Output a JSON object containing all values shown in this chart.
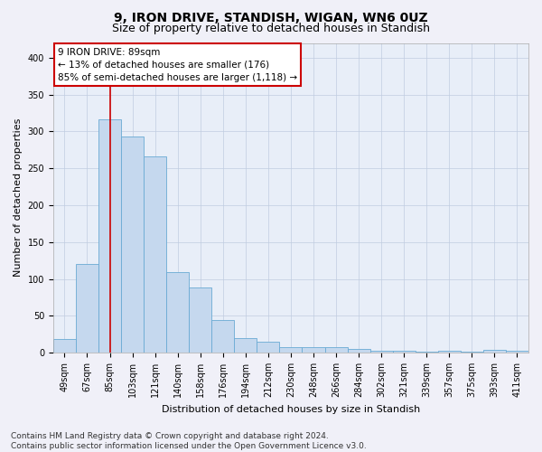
{
  "title": "9, IRON DRIVE, STANDISH, WIGAN, WN6 0UZ",
  "subtitle": "Size of property relative to detached houses in Standish",
  "xlabel": "Distribution of detached houses by size in Standish",
  "ylabel": "Number of detached properties",
  "categories": [
    "49sqm",
    "67sqm",
    "85sqm",
    "103sqm",
    "121sqm",
    "140sqm",
    "158sqm",
    "176sqm",
    "194sqm",
    "212sqm",
    "230sqm",
    "248sqm",
    "266sqm",
    "284sqm",
    "302sqm",
    "321sqm",
    "339sqm",
    "357sqm",
    "375sqm",
    "393sqm",
    "411sqm"
  ],
  "values": [
    18,
    120,
    317,
    293,
    266,
    109,
    88,
    44,
    20,
    15,
    8,
    7,
    7,
    5,
    2,
    2,
    1,
    2,
    1,
    4,
    2
  ],
  "bar_color": "#c5d8ee",
  "bar_edge_color": "#6aaad4",
  "ylim": [
    0,
    420
  ],
  "yticks": [
    0,
    50,
    100,
    150,
    200,
    250,
    300,
    350,
    400
  ],
  "property_bin_index": 2,
  "vline_color": "#cc0000",
  "annotation_text": "9 IRON DRIVE: 89sqm\n← 13% of detached houses are smaller (176)\n85% of semi-detached houses are larger (1,118) →",
  "annotation_box_color": "#ffffff",
  "annotation_box_edge": "#cc0000",
  "footer": "Contains HM Land Registry data © Crown copyright and database right 2024.\nContains public sector information licensed under the Open Government Licence v3.0.",
  "background_color": "#e8eef8",
  "fig_background": "#f0f0f8",
  "title_fontsize": 10,
  "subtitle_fontsize": 9,
  "axis_label_fontsize": 8,
  "tick_fontsize": 7,
  "footer_fontsize": 6.5,
  "annotation_fontsize": 7.5
}
